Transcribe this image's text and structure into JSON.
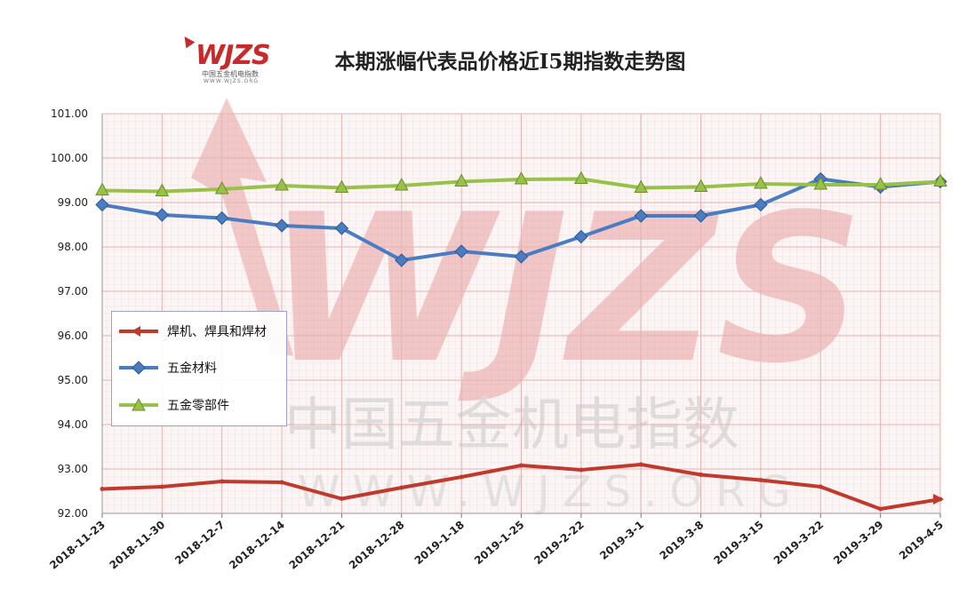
{
  "title": "本期涨幅代表品价格近I5期指数走势图",
  "logo": {
    "text": "WJZS",
    "cn": "中国五金机电指数",
    "url": "WWW.WJZS.ORG"
  },
  "watermark": {
    "text": "WJZS",
    "cn": "中国五金机电指数",
    "url": "WWW.WJZS.ORG"
  },
  "chart_data": {
    "type": "line",
    "title": "本期涨幅代表品价格近I5期指数走势图",
    "categories": [
      "2018-11-23",
      "2018-11-30",
      "2018-12-7",
      "2018-12-14",
      "2018-12-21",
      "2018-12-28",
      "2019-1-18",
      "2019-1-25",
      "2019-2-22",
      "2019-3-1",
      "2019-3-8",
      "2019-3-15",
      "2019-3-22",
      "2019-3-29",
      "2019-4-5"
    ],
    "ylim": [
      92.0,
      101.0
    ],
    "yticks": [
      "92.00",
      "93.00",
      "94.00",
      "95.00",
      "96.00",
      "97.00",
      "98.00",
      "99.00",
      "100.00",
      "101.00"
    ],
    "grid": true,
    "legend_position": "left",
    "series": [
      {
        "name": "焊机、焊具和焊材",
        "color": "#c0392b",
        "marker": "arrow",
        "values": [
          92.55,
          92.6,
          92.72,
          92.7,
          92.33,
          92.58,
          92.82,
          93.08,
          92.98,
          93.1,
          92.87,
          92.75,
          92.6,
          92.1,
          92.32
        ]
      },
      {
        "name": "五金材料",
        "color": "#4a7cc2",
        "marker": "diamond",
        "values": [
          98.95,
          98.72,
          98.65,
          98.48,
          98.42,
          97.7,
          97.9,
          97.78,
          98.23,
          98.7,
          98.7,
          98.95,
          99.53,
          99.35,
          99.47
        ]
      },
      {
        "name": "五金零部件",
        "color": "#98c14a",
        "marker": "triangle",
        "values": [
          99.27,
          99.25,
          99.3,
          99.38,
          99.33,
          99.38,
          99.47,
          99.52,
          99.53,
          99.33,
          99.35,
          99.42,
          99.4,
          99.4,
          99.47
        ]
      }
    ]
  }
}
